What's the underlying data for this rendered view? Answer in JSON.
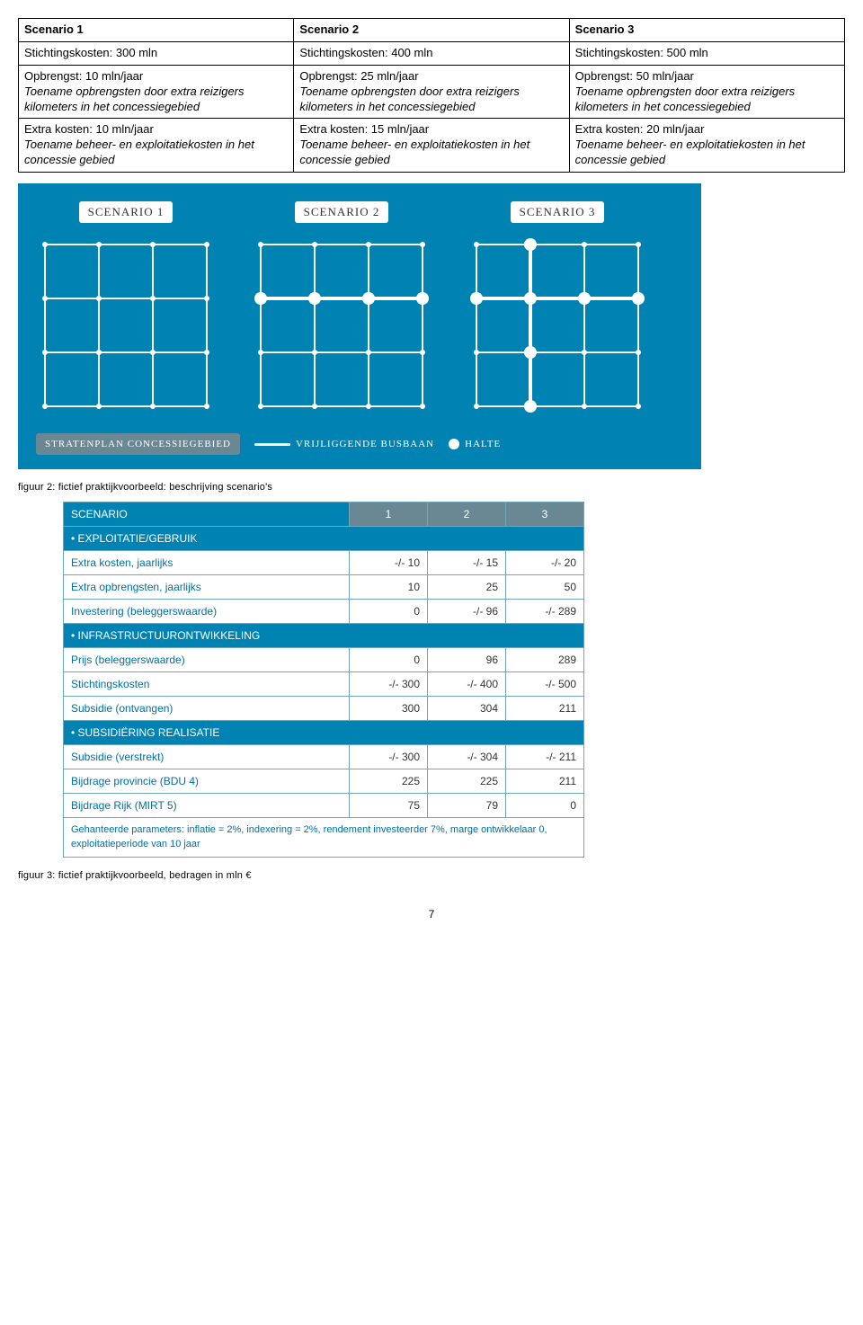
{
  "scenario_table": {
    "headers": [
      "Scenario 1",
      "Scenario 2",
      "Scenario 3"
    ],
    "row_cost": {
      "s1": {
        "line1": "Stichtingskosten: 300 mln"
      },
      "s2": {
        "line1": "Stichtingskosten: 400 mln"
      },
      "s3": {
        "line1": "Stichtingskosten: 500 mln"
      }
    },
    "row_rev": {
      "s1": {
        "line1": "Opbrengst: 10 mln/jaar",
        "line2": "Toename opbrengsten door extra reizigers kilometers in het concessiegebied"
      },
      "s2": {
        "line1": "Opbrengst: 25 mln/jaar",
        "line2": "Toename opbrengsten door extra reizigers kilometers in het concessiegebied"
      },
      "s3": {
        "line1": "Opbrengst: 50 mln/jaar",
        "line2": "Toename opbrengsten door extra reizigers kilometers in het concessiegebied"
      }
    },
    "row_extra": {
      "s1": {
        "line1": "Extra kosten: 10 mln/jaar",
        "line2": "Toename beheer- en exploitatiekosten in het concessie gebied"
      },
      "s2": {
        "line1": "Extra kosten: 15 mln/jaar",
        "line2": "Toename beheer- en exploitatiekosten in het concessie gebied"
      },
      "s3": {
        "line1": "Extra kosten: 20 mln/jaar",
        "line2": "Toename beheer- en exploitatiekosten in het concessie gebied"
      }
    }
  },
  "blue_fig": {
    "bg_color": "#0083b3",
    "labels": {
      "s1": "SCENARIO 1",
      "s2": "SCENARIO 2",
      "s3": "SCENARIO 3"
    },
    "grid": {
      "size": 180,
      "cells": 3,
      "line_color": "#ffffff",
      "line_width": 2,
      "dot_color": "#ffffff",
      "dot_radius": 5,
      "busbaan_width": 4
    },
    "scenarios": {
      "s1": {
        "busbaan": [],
        "haltes": []
      },
      "s2": {
        "busbaan": [
          [
            0,
            1,
            3,
            1
          ]
        ],
        "haltes": [
          [
            0,
            1
          ],
          [
            1,
            1
          ],
          [
            2,
            1
          ],
          [
            3,
            1
          ]
        ]
      },
      "s3": {
        "busbaan": [
          [
            0,
            1,
            3,
            1
          ],
          [
            1,
            0,
            1,
            3
          ]
        ],
        "haltes": [
          [
            0,
            1
          ],
          [
            1,
            1
          ],
          [
            2,
            1
          ],
          [
            3,
            1
          ],
          [
            1,
            0
          ],
          [
            1,
            2
          ],
          [
            1,
            3
          ]
        ]
      }
    },
    "legend": {
      "plan": "STRATENPLAN CONCESSIEGEBIED",
      "busbaan": "VRIJLIGGENDE BUSBAAN",
      "halte": "HALTE"
    }
  },
  "caption_fig2": "figuur 2: fictief praktijkvoorbeeld: beschrijving scenario's",
  "data_table": {
    "header": {
      "label": "SCENARIO",
      "c1": "1",
      "c2": "2",
      "c3": "3"
    },
    "sections": [
      {
        "title": "• EXPLOITATIE/GEBRUIK",
        "rows": [
          {
            "label": "Extra kosten, jaarlijks",
            "v": [
              "-/- 10",
              "-/- 15",
              "-/- 20"
            ]
          },
          {
            "label": "Extra opbrengsten, jaarlijks",
            "v": [
              "10",
              "25",
              "50"
            ]
          },
          {
            "label": "Investering (beleggerswaarde)",
            "v": [
              "0",
              "-/- 96",
              "-/- 289"
            ]
          }
        ]
      },
      {
        "title": "• INFRASTRUCTUURONTWIKKELING",
        "rows": [
          {
            "label": "Prijs (beleggerswaarde)",
            "v": [
              "0",
              "96",
              "289"
            ]
          },
          {
            "label": "Stichtingskosten",
            "v": [
              "-/- 300",
              "-/- 400",
              "-/- 500"
            ]
          },
          {
            "label": "Subsidie (ontvangen)",
            "v": [
              "300",
              "304",
              "211"
            ]
          }
        ]
      },
      {
        "title": "• SUBSIDIËRING REALISATIE",
        "rows": [
          {
            "label": "Subsidie (verstrekt)",
            "v": [
              "-/- 300",
              "-/- 304",
              "-/- 211"
            ]
          },
          {
            "label": "Bijdrage provincie (BDU 4)",
            "v": [
              "225",
              "225",
              "211"
            ]
          },
          {
            "label": "Bijdrage Rijk (MIRT 5)",
            "v": [
              "75",
              "79",
              "0"
            ]
          }
        ]
      }
    ],
    "footnote": "Gehanteerde parameters: inflatie = 2%, indexering = 2%, rendement investeerder 7%, marge ontwikkelaar 0, exploitatieperiode van 10 jaar"
  },
  "caption_fig3": "figuur 3: fictief praktijkvoorbeeld, bedragen in mln €",
  "page_number": "7"
}
